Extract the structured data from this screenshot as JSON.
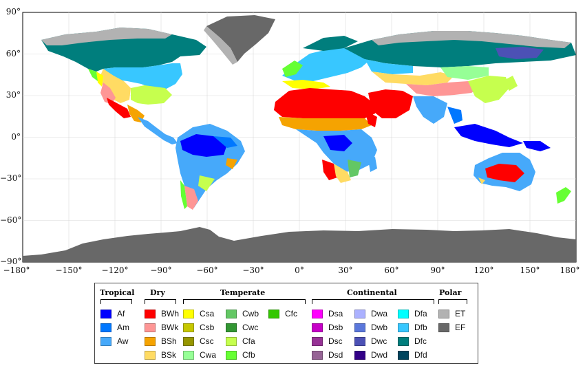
{
  "y_ticks": [
    {
      "label": "90°",
      "lat": 90
    },
    {
      "label": "60°",
      "lat": 60
    },
    {
      "label": "30°",
      "lat": 30
    },
    {
      "label": "0°",
      "lat": 0
    },
    {
      "label": "−30°",
      "lat": -30
    },
    {
      "label": "−60°",
      "lat": -60
    },
    {
      "label": "−90°",
      "lat": -90
    }
  ],
  "x_ticks": [
    {
      "label": "−180°",
      "lon": -180
    },
    {
      "label": "−150°",
      "lon": -150
    },
    {
      "label": "−120°",
      "lon": -120
    },
    {
      "label": "−90°",
      "lon": -90
    },
    {
      "label": "−60°",
      "lon": -60
    },
    {
      "label": "−30°",
      "lon": -30
    },
    {
      "label": "0°",
      "lon": 0
    },
    {
      "label": "30°",
      "lon": 30
    },
    {
      "label": "60°",
      "lon": 60
    },
    {
      "label": "90°",
      "lon": 90
    },
    {
      "label": "120°",
      "lon": 120
    },
    {
      "label": "150°",
      "lon": 150
    },
    {
      "label": "180°",
      "lon": 180
    }
  ],
  "legend": {
    "groups": [
      {
        "title": "Tropical",
        "classes": [
          {
            "code": "Af",
            "color": "#0000fe"
          },
          {
            "code": "Am",
            "color": "#0077ff"
          },
          {
            "code": "Aw",
            "color": "#46a9fa"
          }
        ]
      },
      {
        "title": "Dry",
        "classes": [
          {
            "code": "BWh",
            "color": "#fe0000"
          },
          {
            "code": "BWk",
            "color": "#fe9695"
          },
          {
            "code": "BSh",
            "color": "#f5a301"
          },
          {
            "code": "BSk",
            "color": "#ffdb63"
          }
        ]
      },
      {
        "title": "Temperate",
        "classes": [
          {
            "code": "Csa",
            "color": "#ffff00"
          },
          {
            "code": "Csb",
            "color": "#c6c700"
          },
          {
            "code": "Csc",
            "color": "#969600"
          },
          {
            "code": "Cwa",
            "color": "#96ff96"
          },
          {
            "code": "Cwb",
            "color": "#63c764"
          },
          {
            "code": "Cwc",
            "color": "#329633"
          },
          {
            "code": "Cfa",
            "color": "#c6ff4e"
          },
          {
            "code": "Cfb",
            "color": "#66ff33"
          },
          {
            "code": "Cfc",
            "color": "#33c701"
          }
        ]
      },
      {
        "title": "Continental",
        "classes": [
          {
            "code": "Dsa",
            "color": "#ff00fe"
          },
          {
            "code": "Dsb",
            "color": "#c600c7"
          },
          {
            "code": "Dsc",
            "color": "#963295"
          },
          {
            "code": "Dsd",
            "color": "#966495"
          },
          {
            "code": "Dwa",
            "color": "#abb1ff"
          },
          {
            "code": "Dwb",
            "color": "#5a77db"
          },
          {
            "code": "Dwc",
            "color": "#4c51b5"
          },
          {
            "code": "Dwd",
            "color": "#320087"
          },
          {
            "code": "Dfa",
            "color": "#00ffff"
          },
          {
            "code": "Dfb",
            "color": "#38c7ff"
          },
          {
            "code": "Dfc",
            "color": "#007e7d"
          },
          {
            "code": "Dfd",
            "color": "#00455e"
          }
        ]
      },
      {
        "title": "Polar",
        "classes": [
          {
            "code": "ET",
            "color": "#b2b2b2"
          },
          {
            "code": "EF",
            "color": "#686868"
          }
        ]
      }
    ]
  }
}
